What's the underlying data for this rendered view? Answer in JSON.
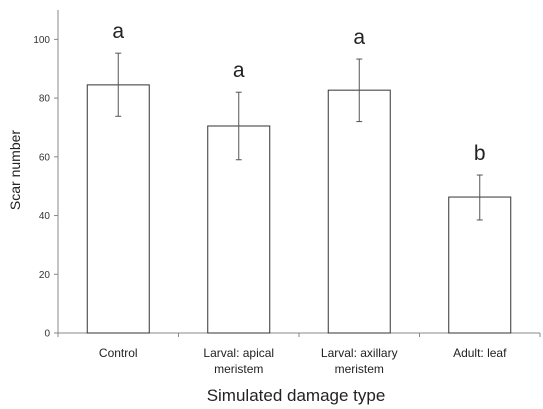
{
  "chart_data": {
    "type": "bar",
    "categories": [
      [
        "Control"
      ],
      [
        "Larval: apical",
        "meristem"
      ],
      [
        "Larval: axillary",
        "meristem"
      ],
      [
        "Adult: leaf"
      ]
    ],
    "values": [
      84.5,
      70.5,
      82.7,
      46.3
    ],
    "error_upper": [
      95.3,
      82.0,
      93.3,
      53.8
    ],
    "error_lower": [
      73.8,
      59.0,
      72.0,
      38.5
    ],
    "significance_letters": [
      "a",
      "a",
      "a",
      "b"
    ],
    "yticks": [
      0,
      20,
      40,
      60,
      80,
      100
    ],
    "ylim": [
      0,
      110
    ],
    "xlabel": "Simulated damage type",
    "ylabel": "Scar number",
    "grid": false,
    "legend": "none",
    "colors": {
      "bar_fill": "#ffffff",
      "bar_stroke": "#333333",
      "axis": "#888888"
    }
  }
}
